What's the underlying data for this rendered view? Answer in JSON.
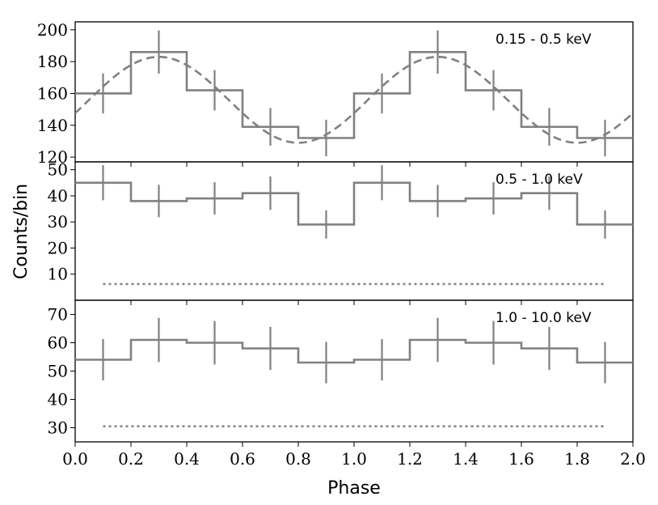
{
  "chart_data": {
    "type": "line",
    "xlabel": "Phase",
    "ylabel": "Counts/bin",
    "xlim": [
      0.0,
      2.0
    ],
    "x_ticks": [
      "0.0",
      "0.2",
      "0.4",
      "0.6",
      "0.8",
      "1.0",
      "1.2",
      "1.4",
      "1.6",
      "1.8",
      "2.0"
    ],
    "grid": false,
    "line_color": "#808080",
    "panels": [
      {
        "label": "0.15 - 0.5 keV",
        "ylim": [
          117,
          205
        ],
        "y_ticks": [
          "120",
          "140",
          "160",
          "180",
          "200"
        ],
        "x": [
          0.1,
          0.3,
          0.5,
          0.7,
          0.9,
          1.1,
          1.3,
          1.5,
          1.7,
          1.9
        ],
        "counts": [
          160,
          186,
          162,
          139,
          132,
          160,
          186,
          162,
          139,
          132
        ],
        "errors": [
          12.6,
          13.6,
          12.7,
          11.8,
          11.5,
          12.6,
          13.6,
          12.7,
          11.8,
          11.5
        ],
        "model": {
          "style": "dashed",
          "mean": 156,
          "amplitude": 27,
          "peak_phase": 0.3
        }
      },
      {
        "label": "0.5 - 1.0 keV",
        "ylim": [
          0,
          53
        ],
        "y_ticks": [
          "10",
          "20",
          "30",
          "40",
          "50"
        ],
        "x": [
          0.1,
          0.3,
          0.5,
          0.7,
          0.9,
          1.1,
          1.3,
          1.5,
          1.7,
          1.9
        ],
        "counts": [
          45,
          38,
          39,
          41,
          29,
          45,
          38,
          39,
          41,
          29
        ],
        "errors": [
          6.7,
          6.2,
          6.2,
          6.4,
          5.4,
          6.7,
          6.2,
          6.2,
          6.4,
          5.4
        ],
        "background": {
          "style": "dotted",
          "value": 6.2
        }
      },
      {
        "label": "1.0 - 10.0 keV",
        "ylim": [
          25,
          75
        ],
        "y_ticks": [
          "30",
          "40",
          "50",
          "60",
          "70"
        ],
        "x": [
          0.1,
          0.3,
          0.5,
          0.7,
          0.9,
          1.1,
          1.3,
          1.5,
          1.7,
          1.9
        ],
        "counts": [
          54,
          61,
          60,
          58,
          53,
          54,
          61,
          60,
          58,
          53
        ],
        "errors": [
          7.3,
          7.8,
          7.7,
          7.6,
          7.3,
          7.3,
          7.8,
          7.7,
          7.6,
          7.3
        ],
        "background": {
          "style": "dotted",
          "value": 30.5
        }
      }
    ]
  }
}
